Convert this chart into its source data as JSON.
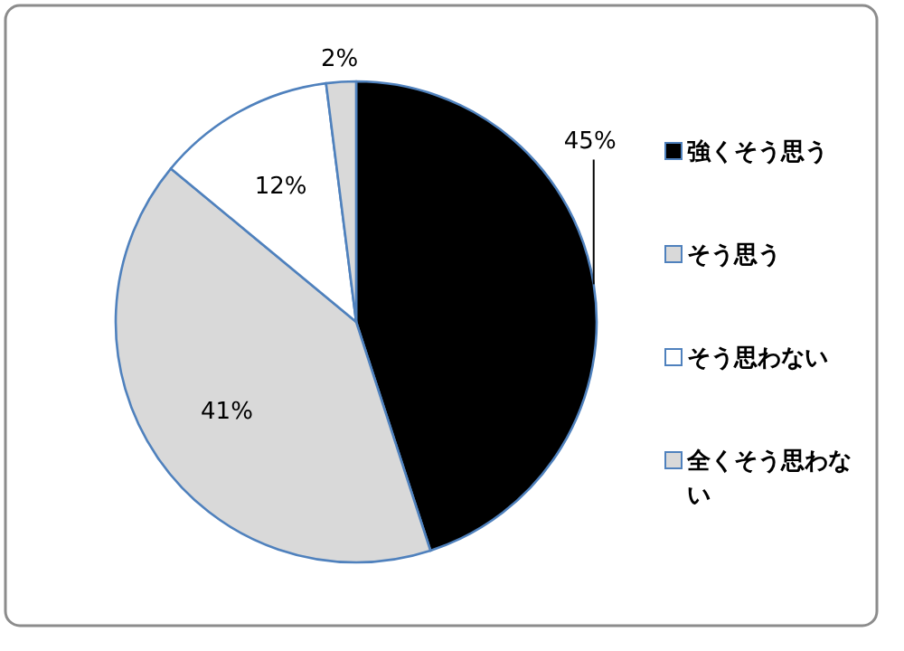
{
  "chart_data": {
    "type": "pie",
    "categories": [
      "強くそう思う",
      "そう思う",
      "そう思わない",
      "全くそう思わない"
    ],
    "values": [
      45,
      41,
      12,
      2
    ],
    "colors": [
      "#000000",
      "#d9d9d9",
      "#ffffff",
      "#d9d9d9"
    ],
    "value_labels": [
      "45%",
      "41%",
      "12%",
      "2%"
    ],
    "legend": "right"
  }
}
